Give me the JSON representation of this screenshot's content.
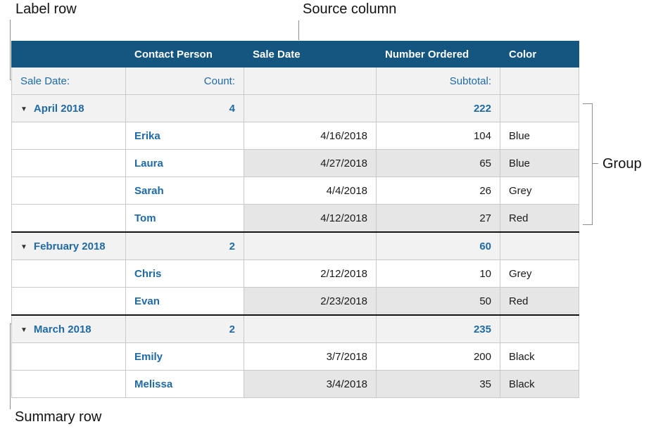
{
  "annotations": {
    "label_row": "Label row",
    "source_column": "Source column",
    "group": "Group",
    "summary_row": "Summary row"
  },
  "table": {
    "headers": [
      "",
      "Contact Person",
      "Sale Date",
      "Number Ordered",
      "Color"
    ],
    "label_row": {
      "category": "Sale Date:",
      "count": "Count:",
      "subtotal": "Subtotal:"
    },
    "disclosure_icon": "▼",
    "groups": [
      {
        "name": "April 2018",
        "count": "4",
        "subtotal": "222",
        "rows": [
          {
            "person": "Erika",
            "date": "4/16/2018",
            "number": "104",
            "color": "Blue"
          },
          {
            "person": "Laura",
            "date": "4/27/2018",
            "number": "65",
            "color": "Blue"
          },
          {
            "person": "Sarah",
            "date": "4/4/2018",
            "number": "26",
            "color": "Grey"
          },
          {
            "person": "Tom",
            "date": "4/12/2018",
            "number": "27",
            "color": "Red"
          }
        ]
      },
      {
        "name": "February 2018",
        "count": "2",
        "subtotal": "60",
        "rows": [
          {
            "person": "Chris",
            "date": "2/12/2018",
            "number": "10",
            "color": "Grey"
          },
          {
            "person": "Evan",
            "date": "2/23/2018",
            "number": "50",
            "color": "Red"
          }
        ]
      },
      {
        "name": "March 2018",
        "count": "2",
        "subtotal": "235",
        "rows": [
          {
            "person": "Emily",
            "date": "3/7/2018",
            "number": "200",
            "color": "Black"
          },
          {
            "person": "Melissa",
            "date": "3/4/2018",
            "number": "35",
            "color": "Black"
          }
        ]
      }
    ]
  },
  "colors": {
    "header_bg": "#14567F",
    "accent_blue": "#1F6AA5",
    "shaded_cell": "#E6E6E6",
    "summary_row_bg": "#F2F2F3",
    "group_divider": "#141414",
    "grid_line": "#C9C9C9",
    "callout_line": "#8E8E8E"
  }
}
